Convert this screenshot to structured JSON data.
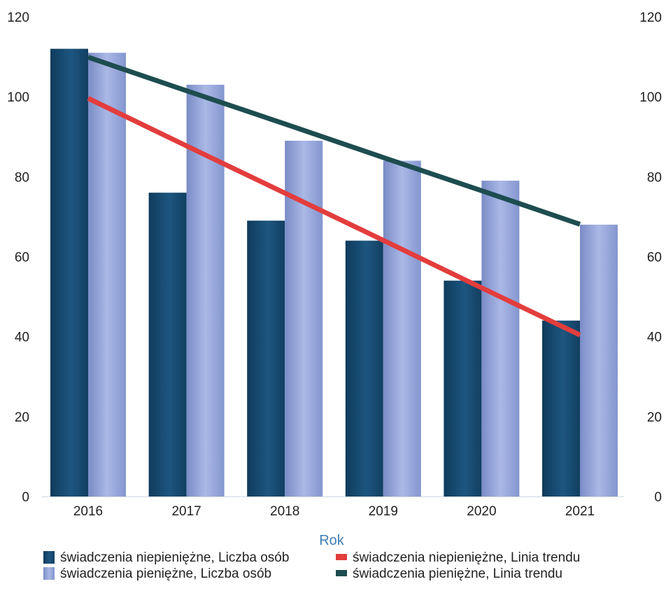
{
  "colors": {
    "bar_dark": "#1a4c73",
    "bar_light": "#94a5d8",
    "trend_red": "#e33d3d",
    "trend_green": "#1d4d4f",
    "axis_title": "#3f7db4",
    "tick_text": "#222222"
  },
  "chart_data": {
    "type": "bar",
    "title": "",
    "xlabel": "Rok",
    "ylabel": "",
    "ylim": [
      0,
      120
    ],
    "y_ticks": [
      0,
      20,
      40,
      60,
      80,
      100,
      120
    ],
    "y2_ticks": [
      0,
      20,
      40,
      60,
      80,
      100,
      120
    ],
    "categories": [
      "2016",
      "2017",
      "2018",
      "2019",
      "2020",
      "2021"
    ],
    "series": [
      {
        "name": "świadczenia niepieniężne, Liczba osób",
        "kind": "bar",
        "values": [
          112,
          76,
          69,
          64,
          54,
          44
        ]
      },
      {
        "name": "świadczenia pieniężne, Liczba osób",
        "kind": "bar",
        "values": [
          111,
          103,
          89,
          84,
          79,
          68
        ]
      },
      {
        "name": "świadczenia niepieniężne, Linia trendu",
        "kind": "line",
        "values": [
          99.6,
          87.7,
          75.9,
          64.1,
          52.2,
          40.4
        ]
      },
      {
        "name": "świadczenia pieniężne, Linia trendu",
        "kind": "line",
        "values": [
          109.9,
          101.5,
          93.2,
          84.8,
          76.5,
          68.1
        ]
      }
    ],
    "grid": false,
    "legend_position": "bottom"
  }
}
